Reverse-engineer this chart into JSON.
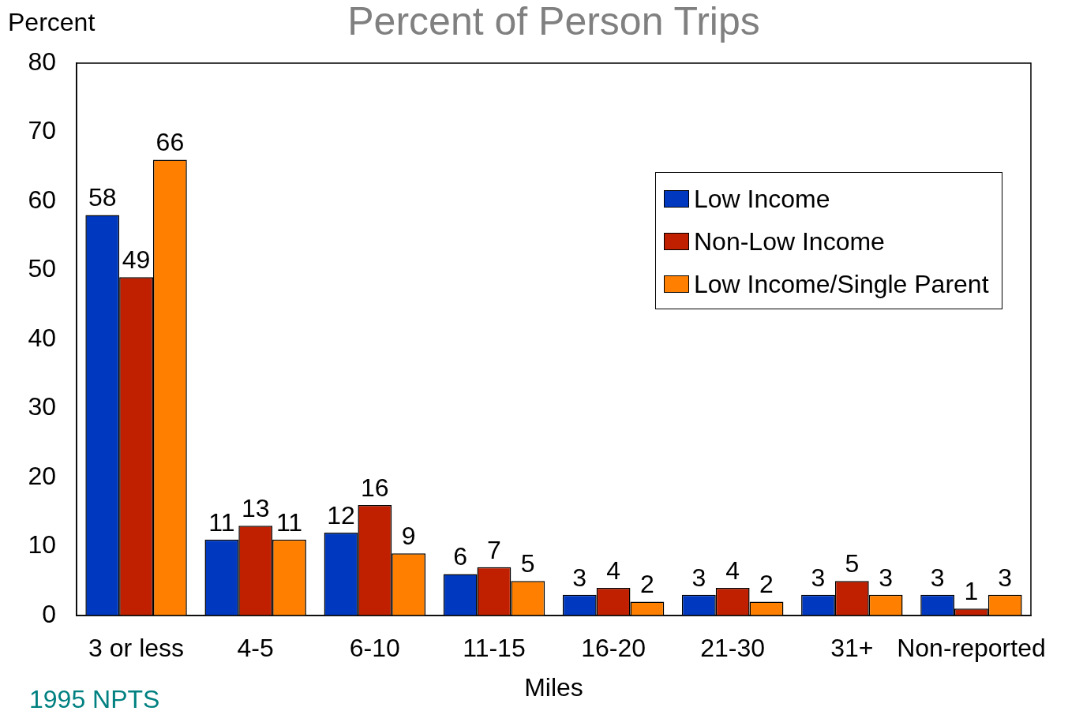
{
  "chart_data": {
    "type": "bar",
    "title": "Percent of Person Trips",
    "ylabel": "Percent",
    "xlabel": "Miles",
    "annotations": [
      "1995 NPTS"
    ],
    "categories": [
      "3 or less",
      "4-5",
      "6-10",
      "11-15",
      "16-20",
      "21-30",
      "31+",
      "Non-reported"
    ],
    "series": [
      {
        "name": "Low Income",
        "color": "#0039c0",
        "values": [
          58,
          11,
          12,
          6,
          3,
          3,
          3,
          3
        ]
      },
      {
        "name": "Non-Low Income",
        "color": "#c02000",
        "values": [
          49,
          13,
          16,
          7,
          4,
          4,
          5,
          1
        ]
      },
      {
        "name": "Low Income/Single Parent",
        "color": "#ff8000",
        "values": [
          66,
          11,
          9,
          5,
          2,
          2,
          3,
          3
        ]
      }
    ],
    "ylim": [
      0,
      80
    ],
    "yticks": [
      0,
      10,
      20,
      30,
      40,
      50,
      60,
      70,
      80
    ],
    "grid": false,
    "legend": "top right",
    "data_labels": true
  }
}
